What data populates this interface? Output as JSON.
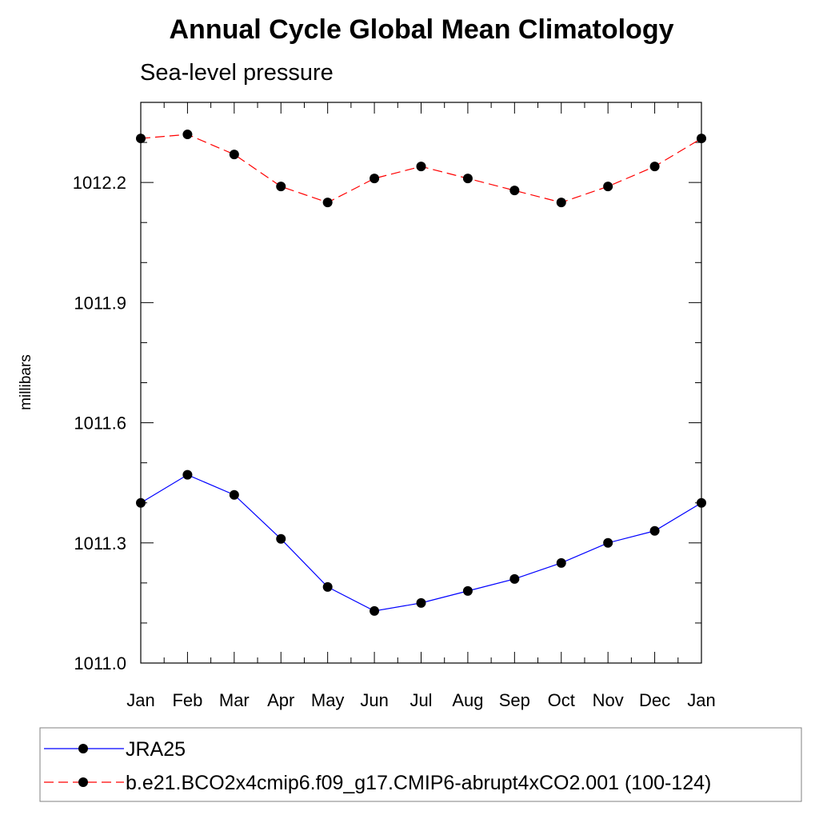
{
  "chart_data": {
    "type": "line",
    "title": "Annual Cycle Global Mean Climatology",
    "subtitle": "Sea-level pressure",
    "ylabel": "millibars",
    "xlabel": "",
    "categories": [
      "Jan",
      "Feb",
      "Mar",
      "Apr",
      "May",
      "Jun",
      "Jul",
      "Aug",
      "Sep",
      "Oct",
      "Nov",
      "Dec",
      "Jan"
    ],
    "ylim": [
      1011.0,
      1012.4
    ],
    "yticks": [
      "1011.0",
      "1011.3",
      "1011.6",
      "1011.9",
      "1012.2"
    ],
    "grid": false,
    "legend_position": "bottom",
    "series": [
      {
        "name": "JRA25",
        "color": "#0000ff",
        "line_style": "solid",
        "values": [
          1011.4,
          1011.47,
          1011.42,
          1011.31,
          1011.19,
          1011.13,
          1011.15,
          1011.18,
          1011.21,
          1011.25,
          1011.3,
          1011.33,
          1011.4
        ]
      },
      {
        "name": "b.e21.BCO2x4cmip6.f09_g17.CMIP6-abrupt4xCO2.001 (100-124)",
        "color": "#ff0000",
        "line_style": "dashed",
        "values": [
          1012.31,
          1012.32,
          1012.27,
          1012.19,
          1012.15,
          1012.21,
          1012.24,
          1012.21,
          1012.18,
          1012.15,
          1012.19,
          1012.24,
          1012.31
        ]
      }
    ]
  }
}
